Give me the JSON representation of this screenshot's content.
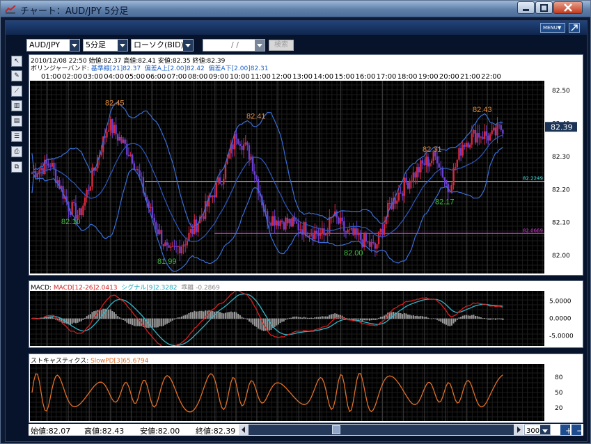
{
  "window": {
    "title": "チャート：AUD/JPY 5分足"
  },
  "menu": {
    "menu_label": "MENU▼"
  },
  "controls": {
    "pair": "AUD/JPY",
    "interval": "5分足",
    "chart_kind": "ローソク(BID)",
    "date_placeholder": "/ /",
    "search_label": "検索"
  },
  "toolbar": {
    "icons": [
      "cursor-icon",
      "pencil-icon",
      "trend-icon",
      "bars-icon",
      "layers-icon",
      "notes-icon",
      "print-icon",
      "copy-icon"
    ]
  },
  "main_chart": {
    "info_line1": "2010/12/08 22:50  始値:82.37  高値:82.41  安値:82.35  終値:82.39",
    "bb_title": "ボリンジャーバンド: ",
    "bb_base": "基準線[21]82.37",
    "bb_upper": "偏差A上[2.00]82.42",
    "bb_lower": "偏差A下[2.00]82.31",
    "times": [
      "01:00",
      "02:00",
      "03:00",
      "04:00",
      "05:00",
      "06:00",
      "07:00",
      "08:00",
      "09:00",
      "10:00",
      "11:00",
      "12:00",
      "13:00",
      "14:00",
      "15:00",
      "16:00",
      "17:00",
      "18:00",
      "19:00",
      "20:00",
      "21:00",
      "22:00"
    ],
    "y_ticks": [
      "82.50",
      "82.40",
      "82.30",
      "82.20",
      "82.10",
      "82.00"
    ],
    "current_price": "82.39",
    "line_labels": [
      "82.2249",
      "82.0669"
    ],
    "annotations": [
      {
        "text": "82.45",
        "color": "#e38b3c"
      },
      {
        "text": "82.41",
        "color": "#e38b3c"
      },
      {
        "text": "82.31",
        "color": "#e38b3c"
      },
      {
        "text": "82.43",
        "color": "#e38b3c"
      },
      {
        "text": "82.10",
        "color": "#3fbf3f"
      },
      {
        "text": "81.99",
        "color": "#3fbf3f"
      },
      {
        "text": "82.00",
        "color": "#3fbf3f"
      },
      {
        "text": "82.17",
        "color": "#3fbf3f"
      }
    ]
  },
  "macd": {
    "title": "MACD: ",
    "macd_value": "MACD[12-26]2.0413",
    "signal_value": "シグナル[9]2.3282",
    "divergence": "乖離 -0.2869",
    "y_ticks": [
      "5.0000",
      "0.0000",
      "-5.0000"
    ]
  },
  "stoch": {
    "title": "ストキャスティクス: ",
    "slow_value": "SlowPD[3]65.6794",
    "y_ticks": [
      "80",
      "50",
      "20"
    ]
  },
  "status": {
    "open": "始値:82.07",
    "high": "高値:82.43",
    "low": "安値:82.00",
    "close": "終値:82.39",
    "bars": "300"
  },
  "colors": {
    "bg": "#0c1a33",
    "up": "#d6283d",
    "down": "#6b3fd0",
    "band": "#3a6ed8",
    "macd": "#d62020",
    "signal": "#35b6c9",
    "stoch": "#e2702a"
  }
}
